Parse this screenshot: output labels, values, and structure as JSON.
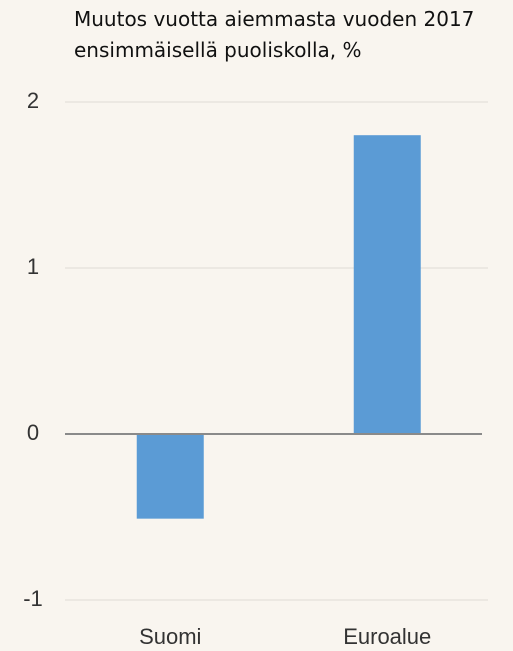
{
  "chart_data": {
    "type": "bar",
    "title": "Muutos vuotta aiemmasta vuoden 2017 ensimmäisellä puoliskolla, %",
    "categories": [
      "Suomi",
      "Euroalue"
    ],
    "values": [
      -0.51,
      1.8
    ],
    "color": "#5b9bd5",
    "ylim": [
      -1,
      2
    ],
    "yticks": [
      -1,
      0,
      1,
      2
    ],
    "grid": true
  }
}
